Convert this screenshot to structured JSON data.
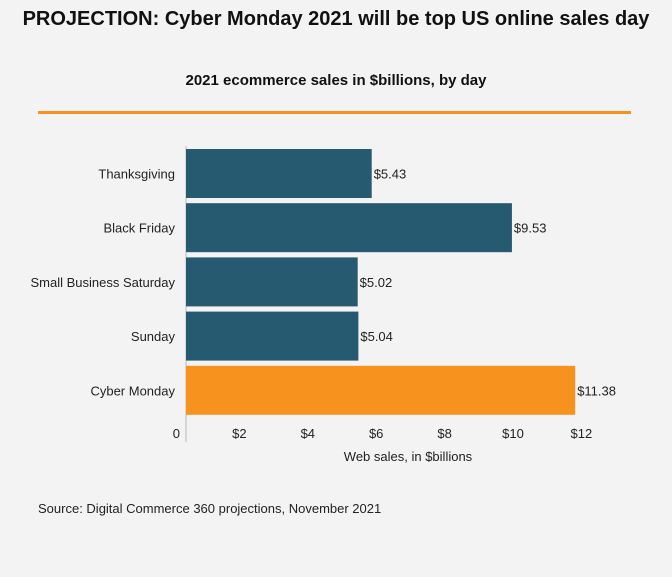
{
  "title": "PROJECTION: Cyber Monday 2021 will be top US online sales day",
  "source": "Source: Digital Commerce 360 projections, November 2021",
  "colors": {
    "bar": "#265a70",
    "highlight": "#f7921e",
    "rule": "#f7921e",
    "background": "#f3f3f3"
  },
  "chart_data": {
    "type": "bar",
    "orientation": "horizontal",
    "title": "2021 ecommerce sales in $billions, by day",
    "xlabel": "Web sales, in $billions",
    "ylabel": "",
    "categories": [
      "Thanksgiving",
      "Black Friday",
      "Small Business Saturday",
      "Sunday",
      "Cyber Monday"
    ],
    "values": [
      5.43,
      9.53,
      5.02,
      5.04,
      11.38
    ],
    "data_labels": [
      "$5.43",
      "$9.53",
      "$5.02",
      "$5.04",
      "$11.38"
    ],
    "highlighted": "Cyber Monday",
    "xlim": [
      0,
      12
    ],
    "xticks": [
      0,
      2,
      4,
      6,
      8,
      10,
      12
    ],
    "xtick_labels": [
      "0",
      "$2",
      "$4",
      "$6",
      "$8",
      "$10",
      "$12"
    ],
    "grid": false,
    "legend": "none"
  }
}
